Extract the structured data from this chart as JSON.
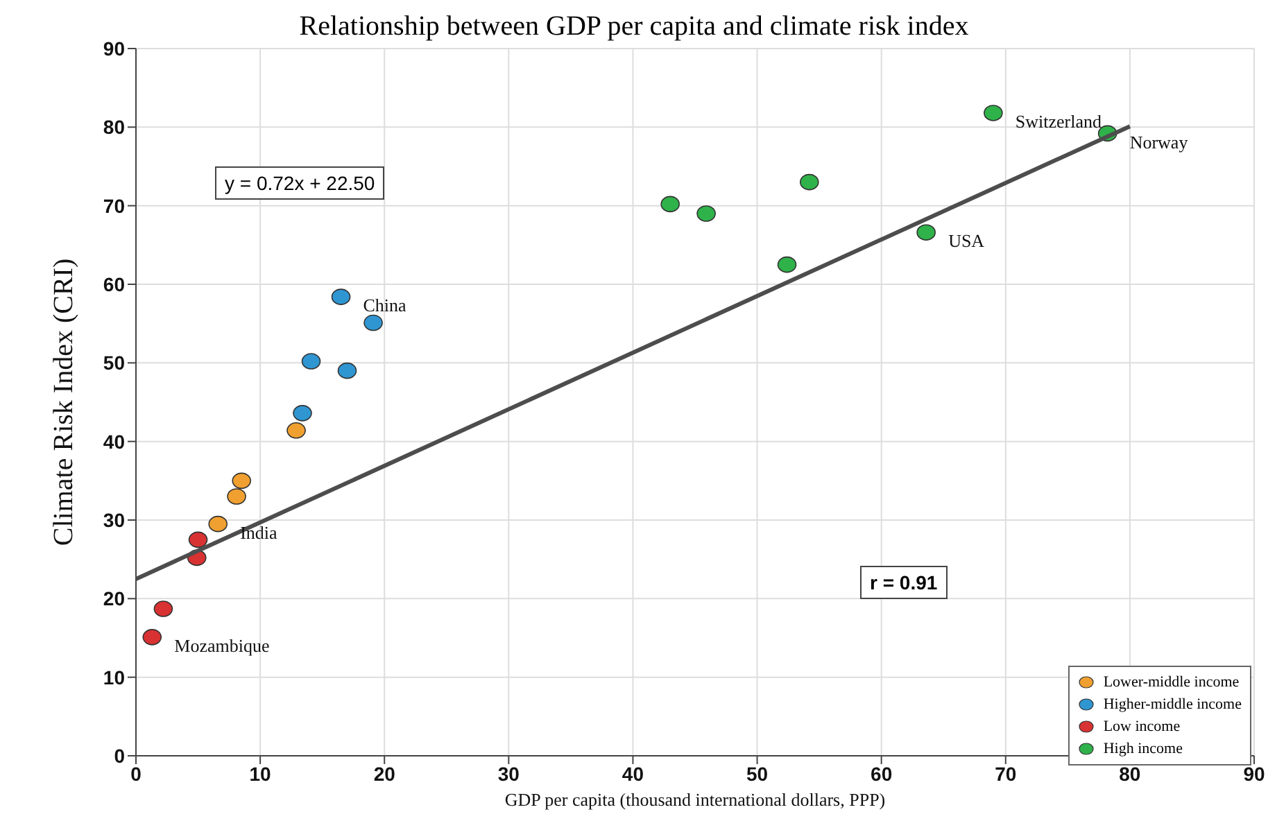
{
  "chart_data": {
    "type": "scatter",
    "title": "Relationship between GDP per capita and climate risk index",
    "xlabel": "GDP per capita (thousand international dollars, PPP)",
    "ylabel": "Climate Risk Index (CRI)",
    "xlim": [
      0,
      90
    ],
    "xticks": [
      0,
      10,
      20,
      30,
      40,
      50,
      60,
      70,
      80,
      90
    ],
    "ylim": [
      0,
      90
    ],
    "yticks": [
      0,
      10,
      20,
      30,
      40,
      50,
      60,
      70,
      80,
      90
    ],
    "grid": true,
    "legend": "bottom right",
    "marker": "circle",
    "series": [
      {
        "name": "Lower-middle income",
        "color": "#f0a030",
        "x": [
          6.6,
          8.1,
          8.5,
          12.9
        ],
        "values": [
          29.5,
          33.0,
          35.0,
          41.4
        ]
      },
      {
        "name": "Higher-middle income",
        "color": "#2f96d2",
        "x": [
          13.4,
          14.1,
          17.0,
          16.5,
          19.1
        ],
        "values": [
          43.6,
          50.2,
          49.0,
          58.4,
          55.1
        ]
      },
      {
        "name": "Low income",
        "color": "#d83232",
        "x": [
          1.3,
          2.2,
          4.9,
          5.0
        ],
        "values": [
          15.1,
          18.7,
          25.2,
          27.5
        ]
      },
      {
        "name": "High income",
        "color": "#2fb24a",
        "x": [
          43.0,
          45.9,
          52.4,
          54.2,
          63.6,
          69.0,
          78.2
        ],
        "values": [
          70.2,
          69.0,
          62.5,
          73.0,
          66.6,
          81.8,
          79.2
        ]
      },
      {
        "type": "line",
        "color": "#4d4d4d",
        "x": [
          0,
          80
        ],
        "values": [
          22.5,
          80.1
        ],
        "marker": "none"
      }
    ],
    "annotations": [
      "y = 0.72x + 22.50",
      "r = 0.91",
      {
        "text": "China",
        "x": 16.5,
        "y": 58.4
      },
      {
        "text": "India",
        "x": 6.6,
        "y": 29.5
      },
      {
        "text": "Mozambique",
        "x": 1.3,
        "y": 15.1
      },
      {
        "text": "Switzerland",
        "x": 69.0,
        "y": 81.8
      },
      {
        "text": "Norway",
        "x": 78.2,
        "y": 79.2
      },
      {
        "text": "USA",
        "x": 63.6,
        "y": 66.6
      }
    ]
  }
}
